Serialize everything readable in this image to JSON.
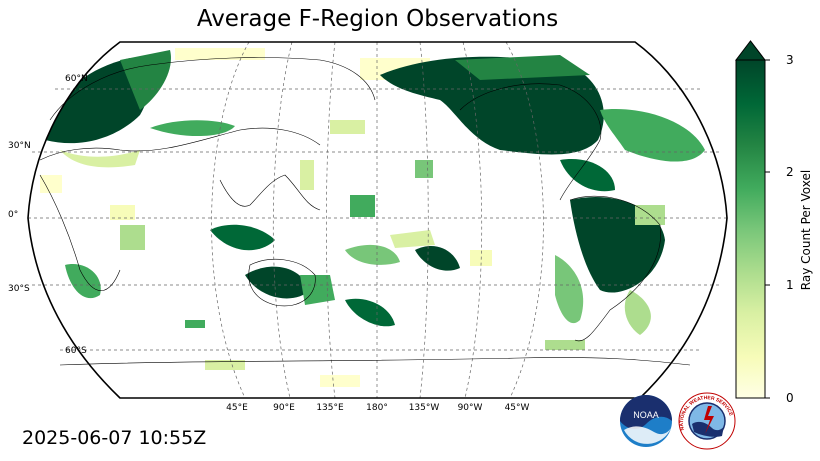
{
  "title": "Average F-Region Observations",
  "timestamp": "2025-06-07 10:55Z",
  "map": {
    "projection": "Robinson (Pacific-centered)",
    "gridlines": true,
    "lat_labels": [
      "60°N",
      "30°N",
      "0°",
      "30°S",
      "60°S"
    ],
    "lon_labels": [
      "45°E",
      "90°E",
      "135°E",
      "180°",
      "135°W",
      "90°W",
      "45°W"
    ]
  },
  "colorbar": {
    "label": "Ray Count Per Voxel",
    "ticks": [
      "0",
      "1",
      "2",
      "3"
    ],
    "range": [
      0,
      3
    ],
    "extend": "max",
    "colormap": "YlGn",
    "colors": [
      "#ffffe5",
      "#f7fcb9",
      "#d9f0a3",
      "#addd8e",
      "#78c679",
      "#41ab5d",
      "#238443",
      "#006837",
      "#004529"
    ]
  },
  "logos": {
    "noaa": {
      "text": "NOAA",
      "icon": "noaa-logo-icon"
    },
    "nws": {
      "text": "NATIONAL WEATHER SERVICE",
      "icon": "nws-logo-icon"
    }
  }
}
